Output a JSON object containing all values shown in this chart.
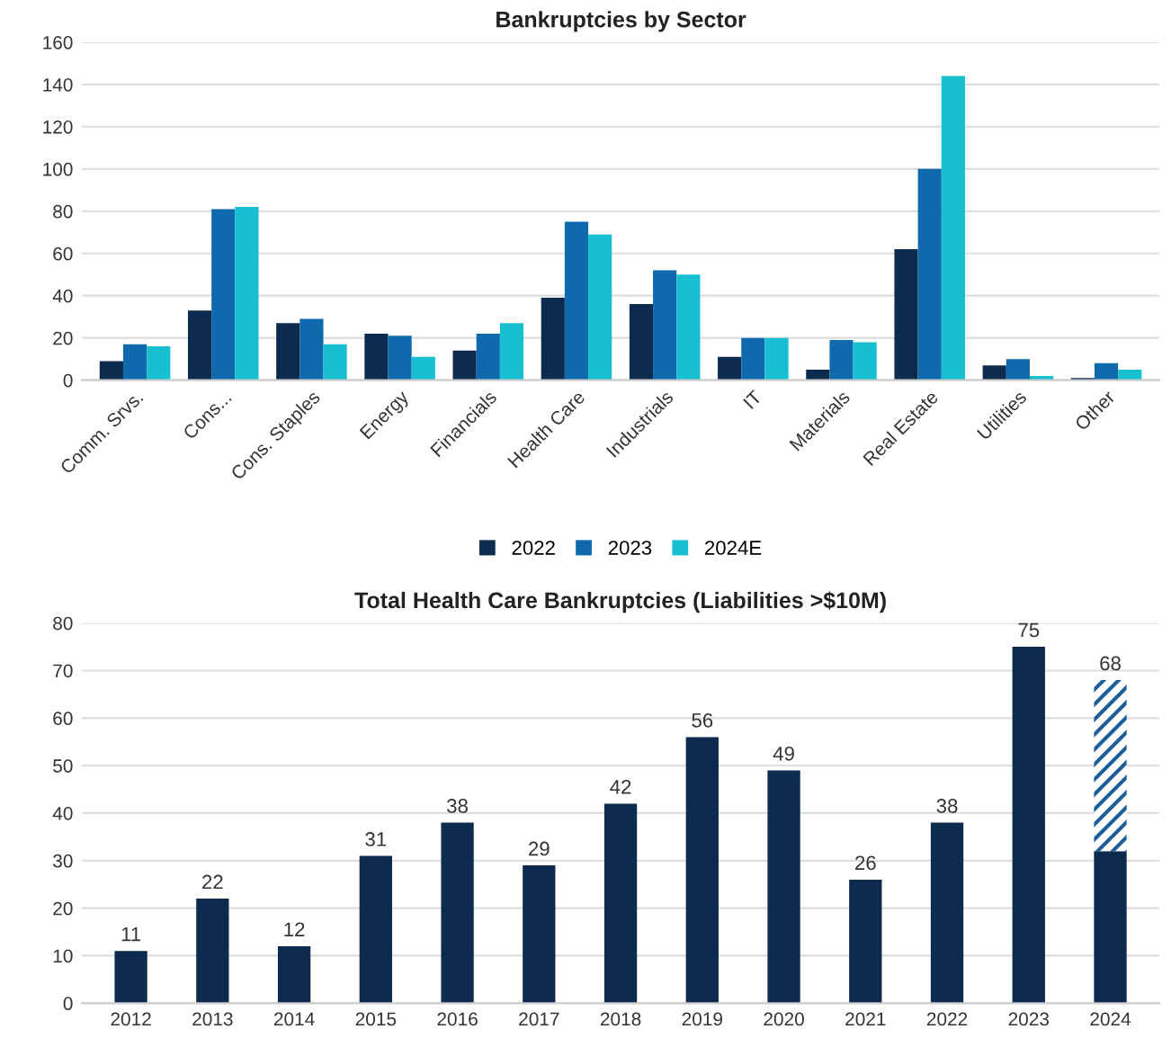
{
  "chart_data": [
    {
      "type": "bar",
      "title": "Bankruptcies by Sector",
      "categories": [
        "Comm. Srvs.",
        "Cons...",
        "Cons. Staples",
        "Energy",
        "Financials",
        "Health Care",
        "Industrials",
        "IT",
        "Materials",
        "Real Estate",
        "Utilities",
        "Other"
      ],
      "series": [
        {
          "name": "2022",
          "color": "#0d2b4e",
          "values": [
            9,
            33,
            27,
            22,
            14,
            39,
            36,
            11,
            5,
            62,
            7,
            1
          ]
        },
        {
          "name": "2023",
          "color": "#0e6aad",
          "values": [
            17,
            81,
            29,
            21,
            22,
            75,
            52,
            20,
            19,
            100,
            10,
            8
          ]
        },
        {
          "name": "2024E",
          "color": "#17bfd0",
          "values": [
            16,
            82,
            17,
            11,
            27,
            69,
            50,
            20,
            18,
            144,
            2,
            5
          ]
        }
      ],
      "ylim": [
        0,
        160
      ],
      "yticks": [
        0,
        20,
        40,
        60,
        80,
        100,
        120,
        140,
        160
      ],
      "grid": "y",
      "legend": "bottom"
    },
    {
      "type": "bar",
      "title": "Total Health Care Bankruptcies (Liabilities >$10M)",
      "categories": [
        "2012",
        "2013",
        "2014",
        "2015",
        "2016",
        "2017",
        "2018",
        "2019",
        "2020",
        "2021",
        "2022",
        "2023",
        "2024"
      ],
      "series": [
        {
          "color": "#0d2b4e",
          "values": [
            11,
            22,
            12,
            31,
            38,
            29,
            42,
            56,
            49,
            26,
            38,
            75,
            32
          ]
        },
        {
          "color": "#1f5f99",
          "values": [
            null,
            null,
            null,
            null,
            null,
            null,
            null,
            null,
            null,
            null,
            null,
            null,
            36
          ]
        }
      ],
      "stacked": true,
      "totals": [
        "11",
        "22",
        "12",
        "31",
        "38",
        "29",
        "42",
        "56",
        "49",
        "26",
        "38",
        "75",
        "68"
      ],
      "ylim": [
        0,
        80
      ],
      "yticks": [
        0,
        10,
        20,
        30,
        40,
        50,
        60,
        70,
        80
      ],
      "grid": "y",
      "legend": false
    }
  ]
}
